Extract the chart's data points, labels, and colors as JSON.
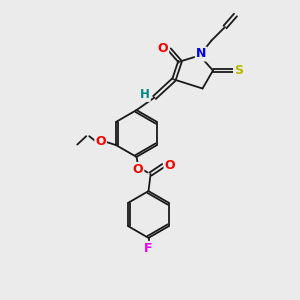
{
  "background_color": "#ebebeb",
  "bond_color": "#1a1a1a",
  "atom_colors": {
    "O": "#ff0000",
    "N": "#0000ee",
    "S": "#b8b800",
    "F": "#ee00ee",
    "H": "#008888",
    "C": "#1a1a1a"
  },
  "font_size": 8.5
}
